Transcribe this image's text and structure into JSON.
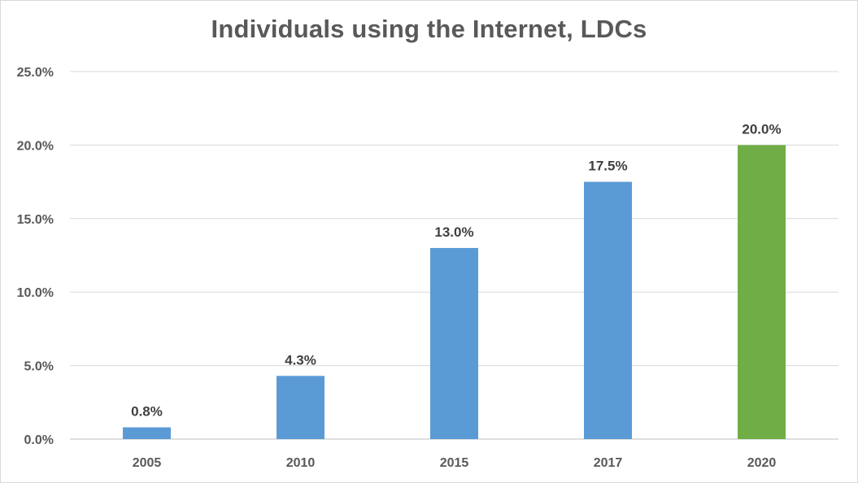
{
  "chart_data": {
    "type": "bar",
    "title": "Individuals using the Internet, LDCs",
    "xlabel": "",
    "ylabel": "",
    "categories": [
      "2005",
      "2010",
      "2015",
      "2017",
      "2020"
    ],
    "values": [
      0.8,
      4.3,
      13.0,
      17.5,
      20.0
    ],
    "value_labels": [
      "0.8%",
      "4.3%",
      "13.0%",
      "17.5%",
      "20.0%"
    ],
    "bar_colors": [
      "#5b9bd5",
      "#5b9bd5",
      "#5b9bd5",
      "#5b9bd5",
      "#70ad47"
    ],
    "ylim": [
      0,
      25
    ],
    "yticks": [
      0,
      5,
      10,
      15,
      20,
      25
    ],
    "ytick_labels": [
      "0.0%",
      "5.0%",
      "10.0%",
      "15.0%",
      "20.0%",
      "25.0%"
    ],
    "grid": true,
    "legend": "none",
    "colors": {
      "gridline": "#d9d9d9",
      "axis_text": "#595959",
      "title": "#595959"
    }
  }
}
